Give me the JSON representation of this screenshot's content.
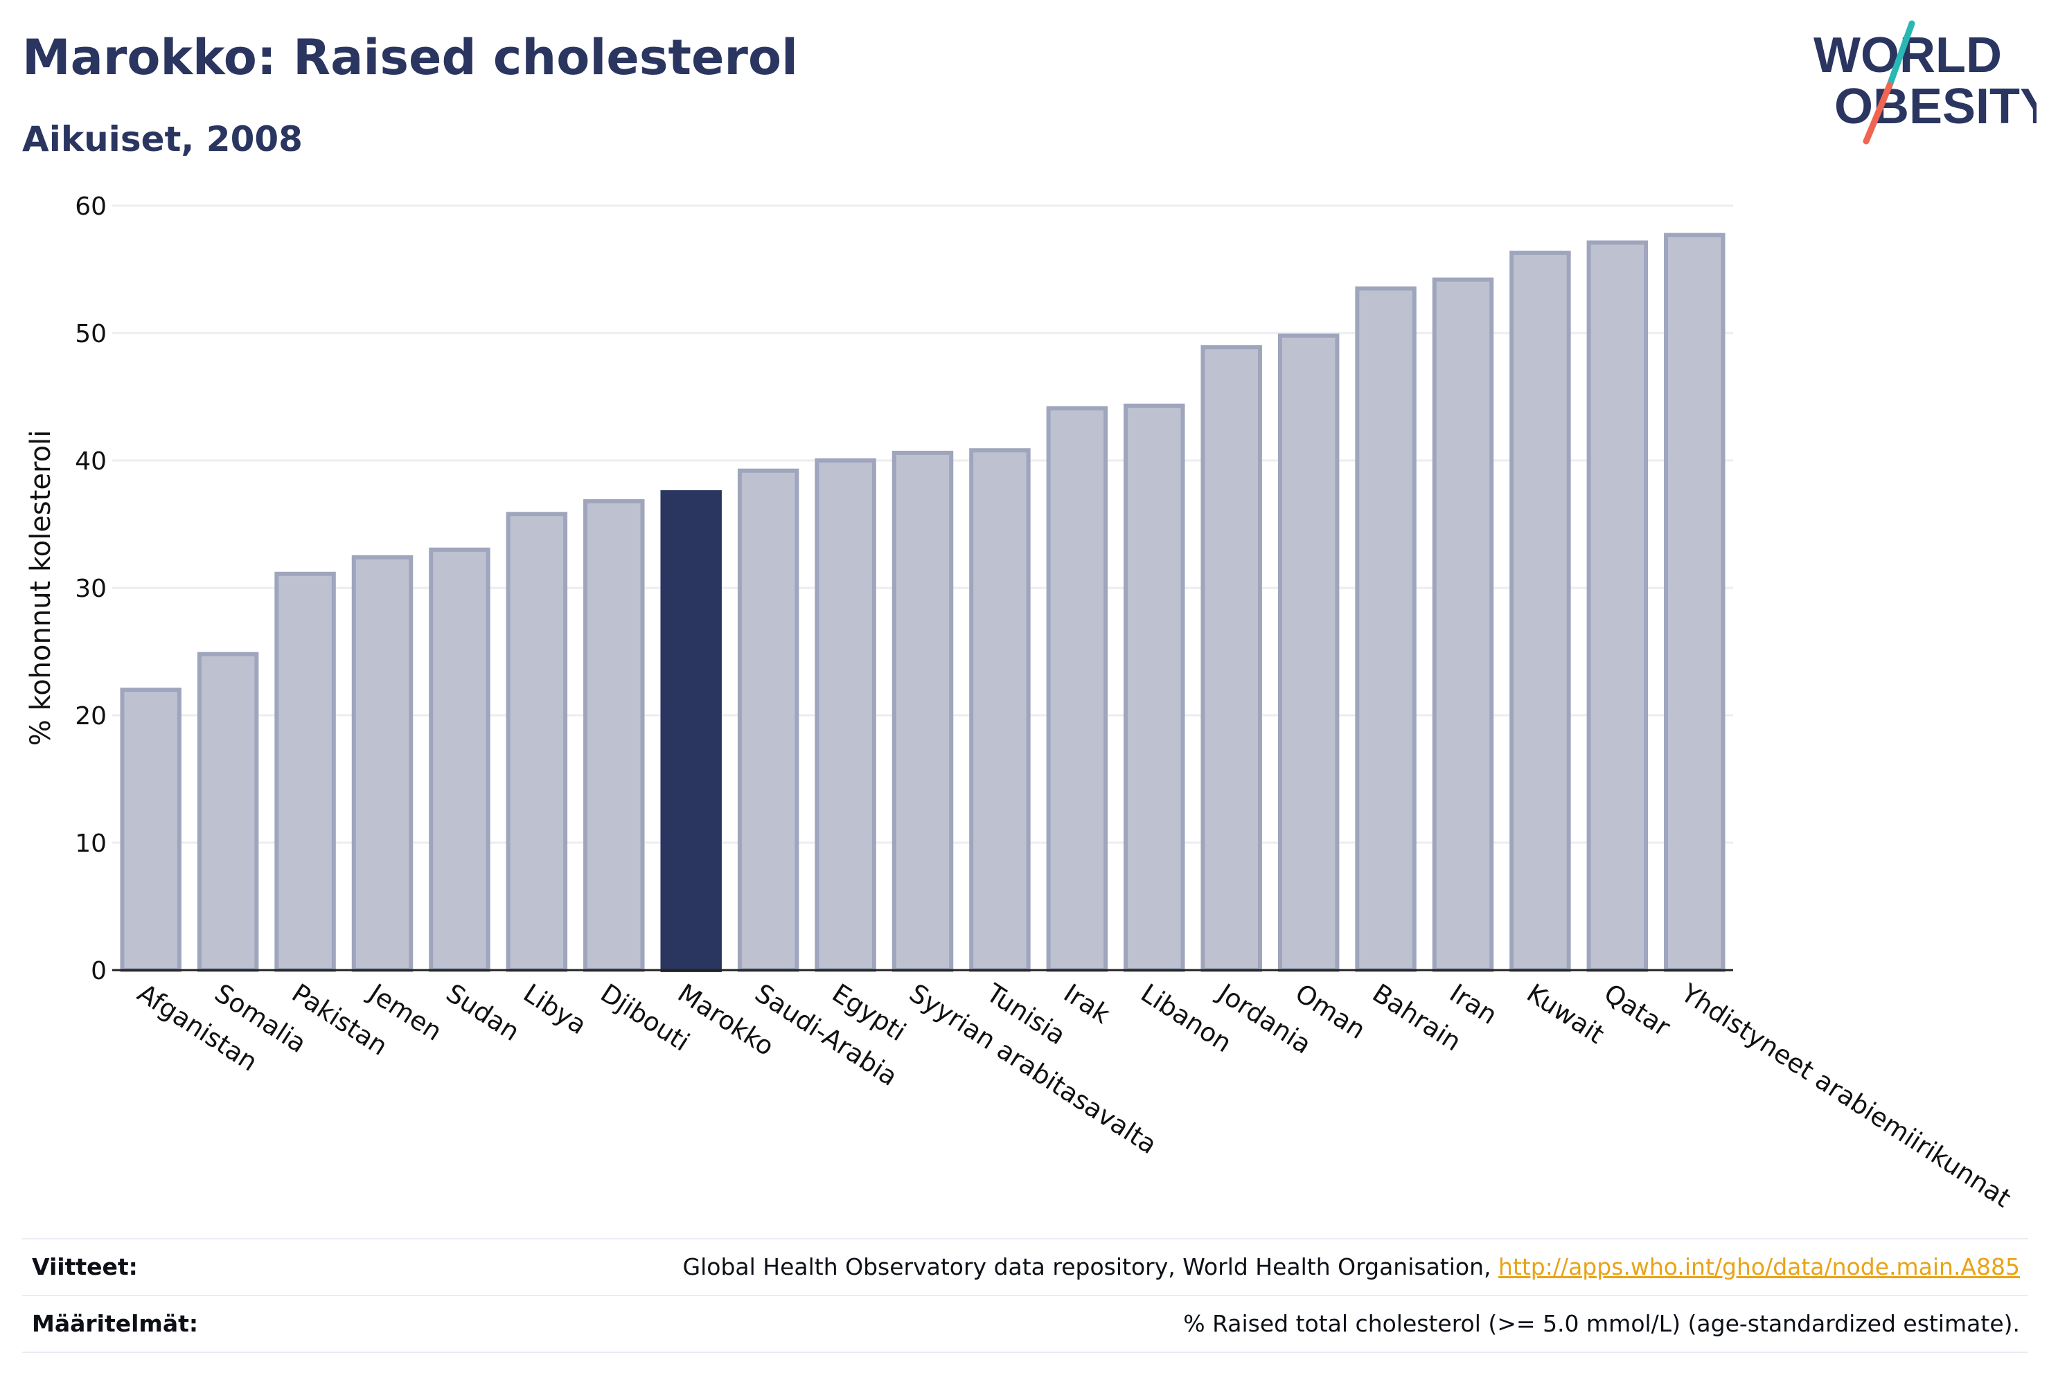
{
  "header": {
    "title": "Marokko: Raised cholesterol",
    "subtitle": "Aikuiset, 2008",
    "logo_line1": "WORLD",
    "logo_line2": "OBESITY"
  },
  "colors": {
    "highlight": "#2a3560",
    "bar_fill": "#bec2d0",
    "bar_stroke": "#9ea5bc",
    "grid": "#ececf1",
    "link": "#e8a317",
    "logo_teal": "#2ab8b4",
    "logo_red": "#f06452"
  },
  "chart_data": {
    "type": "bar",
    "ylabel": "% kohonnut kolesteroli",
    "ylim": [
      0,
      60
    ],
    "yticks": [
      0,
      10,
      20,
      30,
      40,
      50,
      60
    ],
    "grid": true,
    "highlight": "Marokko",
    "categories": [
      "Afganistan",
      "Somalia",
      "Pakistan",
      "Jemen",
      "Sudan",
      "Libya",
      "Djibouti",
      "Marokko",
      "Saudi-Arabia",
      "Egypti",
      "Syyrian arabitasavalta",
      "Tunisia",
      "Irak",
      "Libanon",
      "Jordania",
      "Oman",
      "Bahrain",
      "Iran",
      "Kuwait",
      "Qatar",
      "Yhdistyneet arabiemiirikunnat"
    ],
    "values": [
      22.0,
      24.8,
      31.1,
      32.4,
      33.0,
      35.8,
      36.8,
      37.5,
      39.2,
      40.0,
      40.6,
      40.8,
      44.1,
      44.3,
      48.9,
      49.8,
      53.5,
      54.2,
      56.3,
      57.1,
      57.7
    ]
  },
  "footer": {
    "sources_label": "Viitteet:",
    "sources_text": "Global Health Observatory data repository, World Health Organisation, ",
    "sources_link": "http://apps.who.int/gho/data/node.main.A885",
    "definitions_label": "Määritelmät:",
    "definitions_text": "% Raised total cholesterol (>= 5.0 mmol/L) (age-standardized estimate)."
  }
}
